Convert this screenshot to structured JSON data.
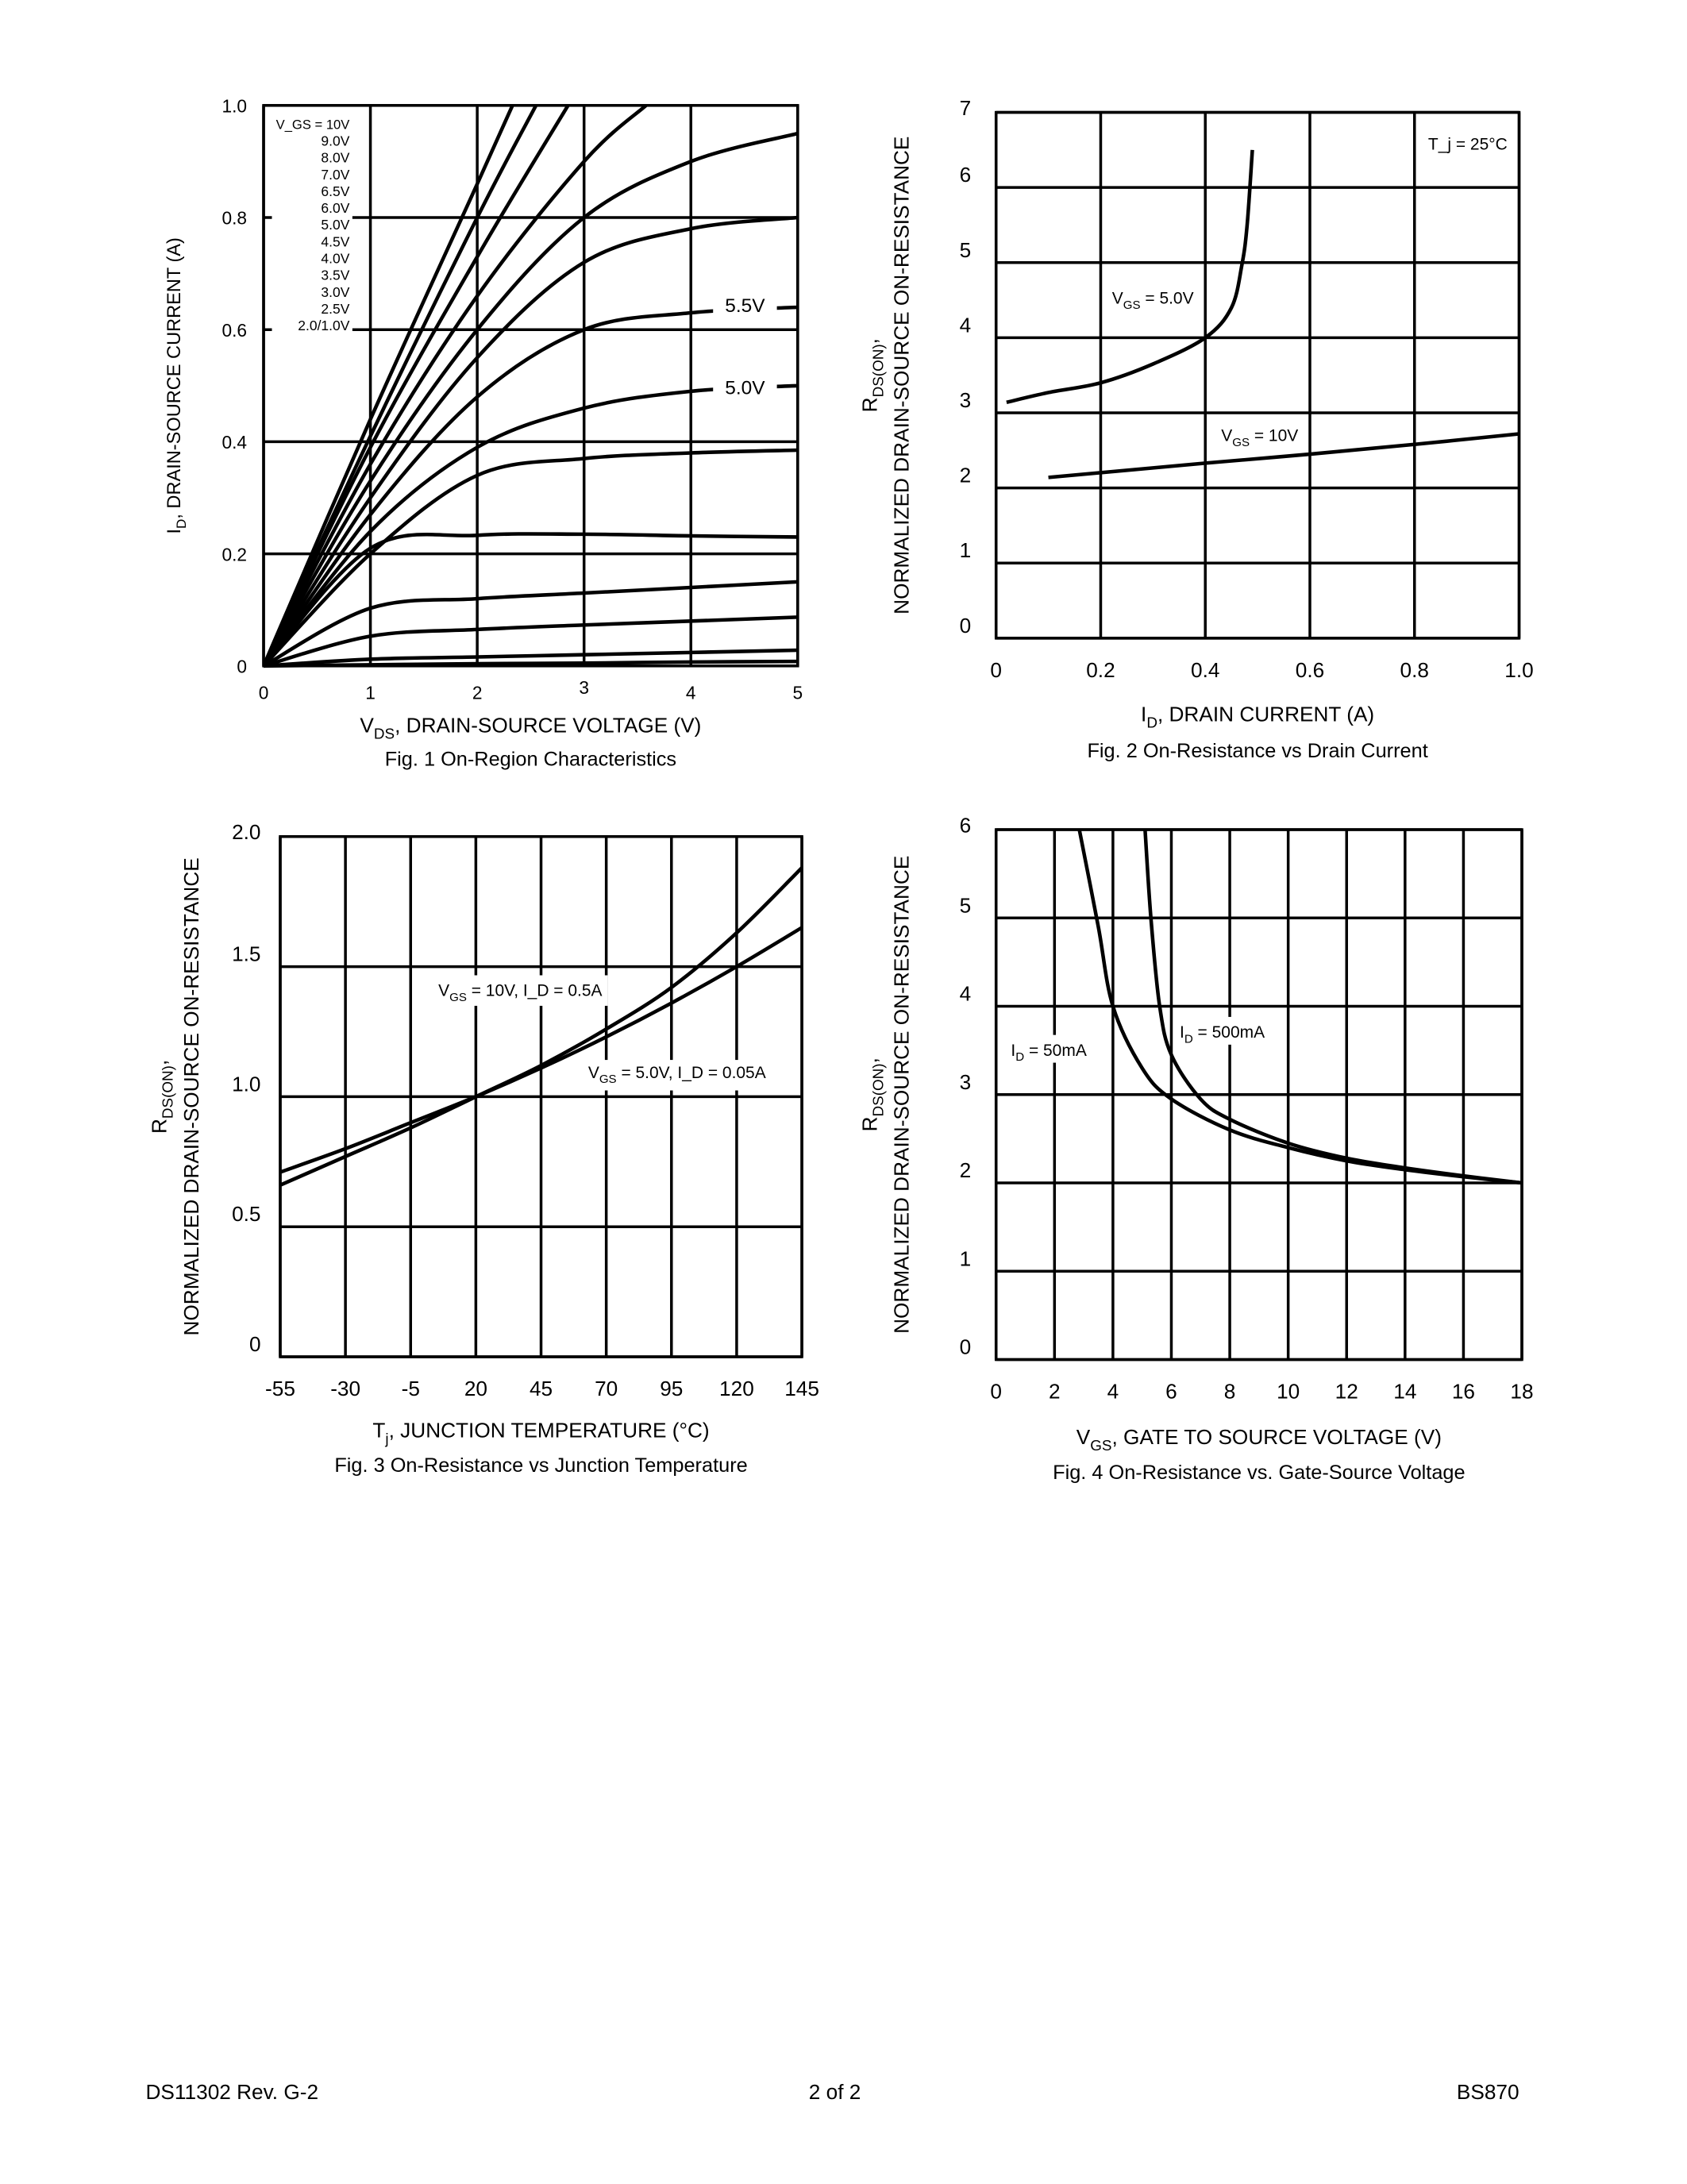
{
  "footer": {
    "left": "DS11302 Rev. G-2",
    "center": "2 of 2",
    "right": "BS870"
  },
  "chart_data": [
    {
      "type": "line",
      "caption": "Fig. 1  On-Region Characteristics",
      "xlabel": "V_DS, DRAIN-SOURCE VOLTAGE (V)",
      "ylabel": "I_D, DRAIN-SOURCE CURRENT (A)",
      "xlim": [
        0,
        5
      ],
      "ylim": [
        0,
        1.0
      ],
      "grid": true,
      "xticks": [
        "0",
        "1",
        "2",
        "3",
        "4",
        "5"
      ],
      "yticks": [
        "0",
        "0.2",
        "0.4",
        "0.6",
        "0.8",
        "1.0"
      ],
      "legend_title": "V_GS = 10V",
      "legend": [
        "9.0V",
        "8.0V",
        "7.0V",
        "6.5V",
        "6.0V",
        "5.0V",
        "4.5V",
        "4.0V",
        "3.5V",
        "3.0V",
        "2.5V",
        "2.0/1.0V"
      ],
      "annotations": [
        "5.5V",
        "5.0V"
      ],
      "series": [
        {
          "x": [
            0,
            1,
            2,
            2.33
          ],
          "y": [
            0,
            0.44,
            0.86,
            1.0
          ]
        },
        {
          "x": [
            0,
            1,
            2,
            2.55
          ],
          "y": [
            0,
            0.41,
            0.8,
            1.0
          ]
        },
        {
          "x": [
            0,
            1,
            2,
            2.85
          ],
          "y": [
            0,
            0.39,
            0.73,
            1.0
          ]
        },
        {
          "x": [
            0,
            1,
            2,
            3,
            3.58
          ],
          "y": [
            0,
            0.36,
            0.66,
            0.9,
            1.0
          ]
        },
        {
          "x": [
            0,
            1,
            2,
            3,
            4,
            5
          ],
          "y": [
            0,
            0.33,
            0.6,
            0.8,
            0.9,
            0.95
          ]
        },
        {
          "x": [
            0,
            1,
            2,
            3,
            4,
            5
          ],
          "y": [
            0,
            0.3,
            0.55,
            0.72,
            0.78,
            0.8
          ]
        },
        {
          "x": [
            0,
            1,
            2,
            3,
            4,
            5
          ],
          "y": [
            0,
            0.27,
            0.48,
            0.6,
            0.63,
            0.64
          ]
        },
        {
          "x": [
            0,
            1,
            2,
            3,
            4,
            5
          ],
          "y": [
            0,
            0.24,
            0.39,
            0.46,
            0.49,
            0.5
          ]
        },
        {
          "x": [
            0,
            1,
            2,
            3,
            4,
            5
          ],
          "y": [
            0,
            0.2,
            0.34,
            0.37,
            0.38,
            0.385
          ]
        },
        {
          "x": [
            0,
            1,
            2,
            3,
            4,
            5
          ],
          "y": [
            0,
            0.21,
            0.233,
            0.235,
            0.232,
            0.23
          ]
        },
        {
          "x": [
            0,
            1,
            2,
            3,
            4,
            5
          ],
          "y": [
            0,
            0.103,
            0.12,
            0.13,
            0.14,
            0.15
          ]
        },
        {
          "x": [
            0,
            1,
            2,
            3,
            4,
            5
          ],
          "y": [
            0,
            0.053,
            0.065,
            0.073,
            0.08,
            0.087
          ]
        },
        {
          "x": [
            0,
            1,
            2,
            3,
            4,
            5
          ],
          "y": [
            0,
            0.012,
            0.016,
            0.02,
            0.024,
            0.028
          ]
        },
        {
          "x": [
            0,
            1,
            2,
            3,
            4,
            5
          ],
          "y": [
            0,
            0.002,
            0.004,
            0.005,
            0.007,
            0.008
          ]
        }
      ]
    },
    {
      "type": "line",
      "caption": "Fig. 2  On-Resistance vs Drain Current",
      "xlabel": "I_D, DRAIN CURRENT (A)",
      "ylabel": "R_DS(ON), NORMALIZED DRAIN-SOURCE ON-RESISTANCE",
      "xlim": [
        0,
        1.0
      ],
      "ylim": [
        0,
        7
      ],
      "grid": true,
      "xticks": [
        "0",
        "0.2",
        "0.4",
        "0.6",
        "0.8",
        "1.0"
      ],
      "yticks": [
        "0",
        "1",
        "2",
        "3",
        "4",
        "5",
        "6",
        "7"
      ],
      "annotations": [
        "T_j = 25°C"
      ],
      "series": [
        {
          "name": "V_GS = 5.0V",
          "x": [
            0.02,
            0.1,
            0.2,
            0.3,
            0.4,
            0.45,
            0.47,
            0.48,
            0.49
          ],
          "y": [
            3.14,
            3.27,
            3.4,
            3.65,
            4.0,
            4.4,
            4.97,
            5.5,
            6.5
          ]
        },
        {
          "name": "V_GS = 10V",
          "x": [
            0.1,
            0.4,
            0.6,
            0.8,
            1.0
          ],
          "y": [
            2.14,
            2.33,
            2.45,
            2.58,
            2.72
          ]
        }
      ]
    },
    {
      "type": "line",
      "caption": "Fig. 3  On-Resistance vs Junction Temperature",
      "xlabel": "T_j, JUNCTION TEMPERATURE (°C)",
      "ylabel": "R_DS(ON), NORMALIZED DRAIN-SOURCE ON-RESISTANCE",
      "xlim": [
        -55,
        145
      ],
      "ylim": [
        0,
        2.0
      ],
      "grid": true,
      "xticks": [
        "-55",
        "-30",
        "-5",
        "20",
        "45",
        "70",
        "95",
        "120",
        "145"
      ],
      "yticks": [
        "0",
        "0.5",
        "1.0",
        "1.5",
        "2.0"
      ],
      "series": [
        {
          "name": "V_GS = 10V, I_D = 0.5A",
          "x": [
            -55,
            -30,
            -5,
            20,
            45,
            70,
            95,
            120,
            145
          ],
          "y": [
            0.66,
            0.77,
            0.88,
            1.0,
            1.12,
            1.26,
            1.42,
            1.63,
            1.88
          ]
        },
        {
          "name": "V_GS = 5.0V, I_D = 0.05A",
          "x": [
            -55,
            -30,
            -5,
            20,
            45,
            70,
            95,
            120,
            145
          ],
          "y": [
            0.71,
            0.8,
            0.9,
            1.0,
            1.11,
            1.23,
            1.36,
            1.5,
            1.65
          ]
        }
      ]
    },
    {
      "type": "line",
      "caption": "Fig. 4  On-Resistance vs. Gate-Source Voltage",
      "xlabel": "V_GS, GATE TO SOURCE VOLTAGE (V)",
      "ylabel": "R_DS(ON), NORMALIZED DRAIN-SOURCE ON-RESISTANCE",
      "xlim": [
        0,
        18
      ],
      "ylim": [
        0,
        6
      ],
      "grid": true,
      "xticks": [
        "0",
        "2",
        "4",
        "6",
        "8",
        "10",
        "12",
        "14",
        "16",
        "18"
      ],
      "yticks": [
        "0",
        "1",
        "2",
        "3",
        "4",
        "5",
        "6"
      ],
      "series": [
        {
          "name": "I_D = 50mA",
          "x": [
            2.85,
            3.5,
            4,
            5,
            6,
            8,
            10,
            12,
            14,
            16,
            18
          ],
          "y": [
            6,
            4.9,
            4.0,
            3.3,
            2.95,
            2.6,
            2.4,
            2.25,
            2.15,
            2.07,
            2.0
          ]
        },
        {
          "name": "I_D = 500mA",
          "x": [
            5.1,
            5.3,
            5.6,
            6,
            7,
            8,
            10,
            12,
            14,
            16,
            18
          ],
          "y": [
            6,
            5,
            4,
            3.45,
            2.95,
            2.72,
            2.45,
            2.28,
            2.17,
            2.08,
            2.0
          ]
        }
      ]
    }
  ]
}
